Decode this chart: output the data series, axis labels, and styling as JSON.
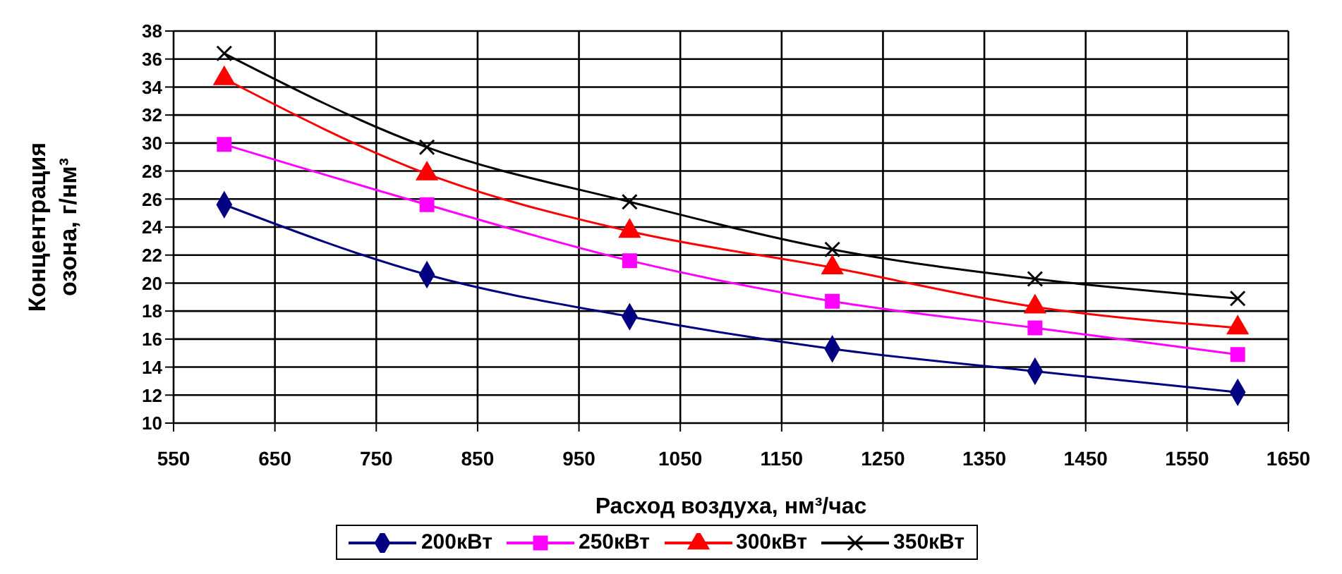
{
  "chart_data": {
    "type": "line",
    "xlabel": "Расход воздуха, нм³/час",
    "ylabel": "Концентрация озона, г/нм³",
    "x": [
      600,
      800,
      1000,
      1200,
      1400,
      1600
    ],
    "series": [
      {
        "name": "200кВт",
        "color": "#000080",
        "marker": "diamond",
        "values": [
          25.6,
          20.6,
          17.6,
          15.3,
          13.7,
          12.2
        ]
      },
      {
        "name": "250кВт",
        "color": "#ff00ff",
        "marker": "square",
        "values": [
          29.9,
          25.6,
          21.6,
          18.7,
          16.8,
          14.9
        ]
      },
      {
        "name": "300кВт",
        "color": "#ff0000",
        "marker": "triangle",
        "values": [
          34.6,
          27.8,
          23.7,
          21.1,
          18.3,
          16.8
        ]
      },
      {
        "name": "350кВт",
        "color": "#000000",
        "marker": "cross",
        "values": [
          36.4,
          29.7,
          25.8,
          22.4,
          20.3,
          18.9
        ]
      }
    ],
    "xlim": [
      550,
      1650
    ],
    "xticks": [
      550,
      650,
      750,
      850,
      950,
      1050,
      1150,
      1250,
      1350,
      1450,
      1550,
      1650
    ],
    "ylim": [
      10,
      38
    ],
    "yticks": [
      10,
      12,
      14,
      16,
      18,
      20,
      22,
      24,
      26,
      28,
      30,
      32,
      34,
      36,
      38
    ],
    "grid": true,
    "legend": "bottom"
  }
}
